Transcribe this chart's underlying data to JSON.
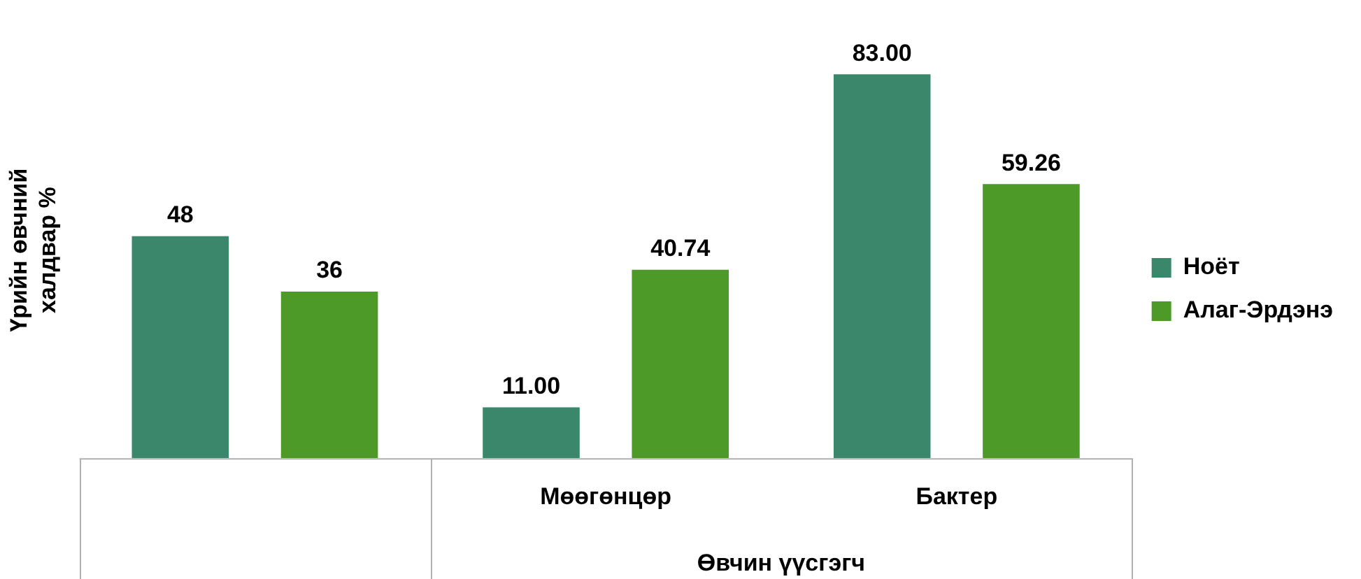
{
  "chart_data": {
    "type": "bar",
    "xlabel": "Өвчин үүсгэгч",
    "ylabel": "Үрийн өвчний халдвар %",
    "categories": [
      null,
      "Мөөгөнцөр",
      "Бактер"
    ],
    "series": [
      {
        "name": "Ноёт",
        "color": "#3b876c",
        "values": [
          48,
          11,
          83
        ],
        "value_labels": [
          "48",
          "11.00",
          "83.00"
        ]
      },
      {
        "name": "Алаг-Эрдэнэ",
        "color": "#4e9a29",
        "values": [
          36,
          40.74,
          59.26
        ],
        "value_labels": [
          "36",
          "40.74",
          "59.26"
        ]
      }
    ],
    "grid": false,
    "legend": "right"
  }
}
